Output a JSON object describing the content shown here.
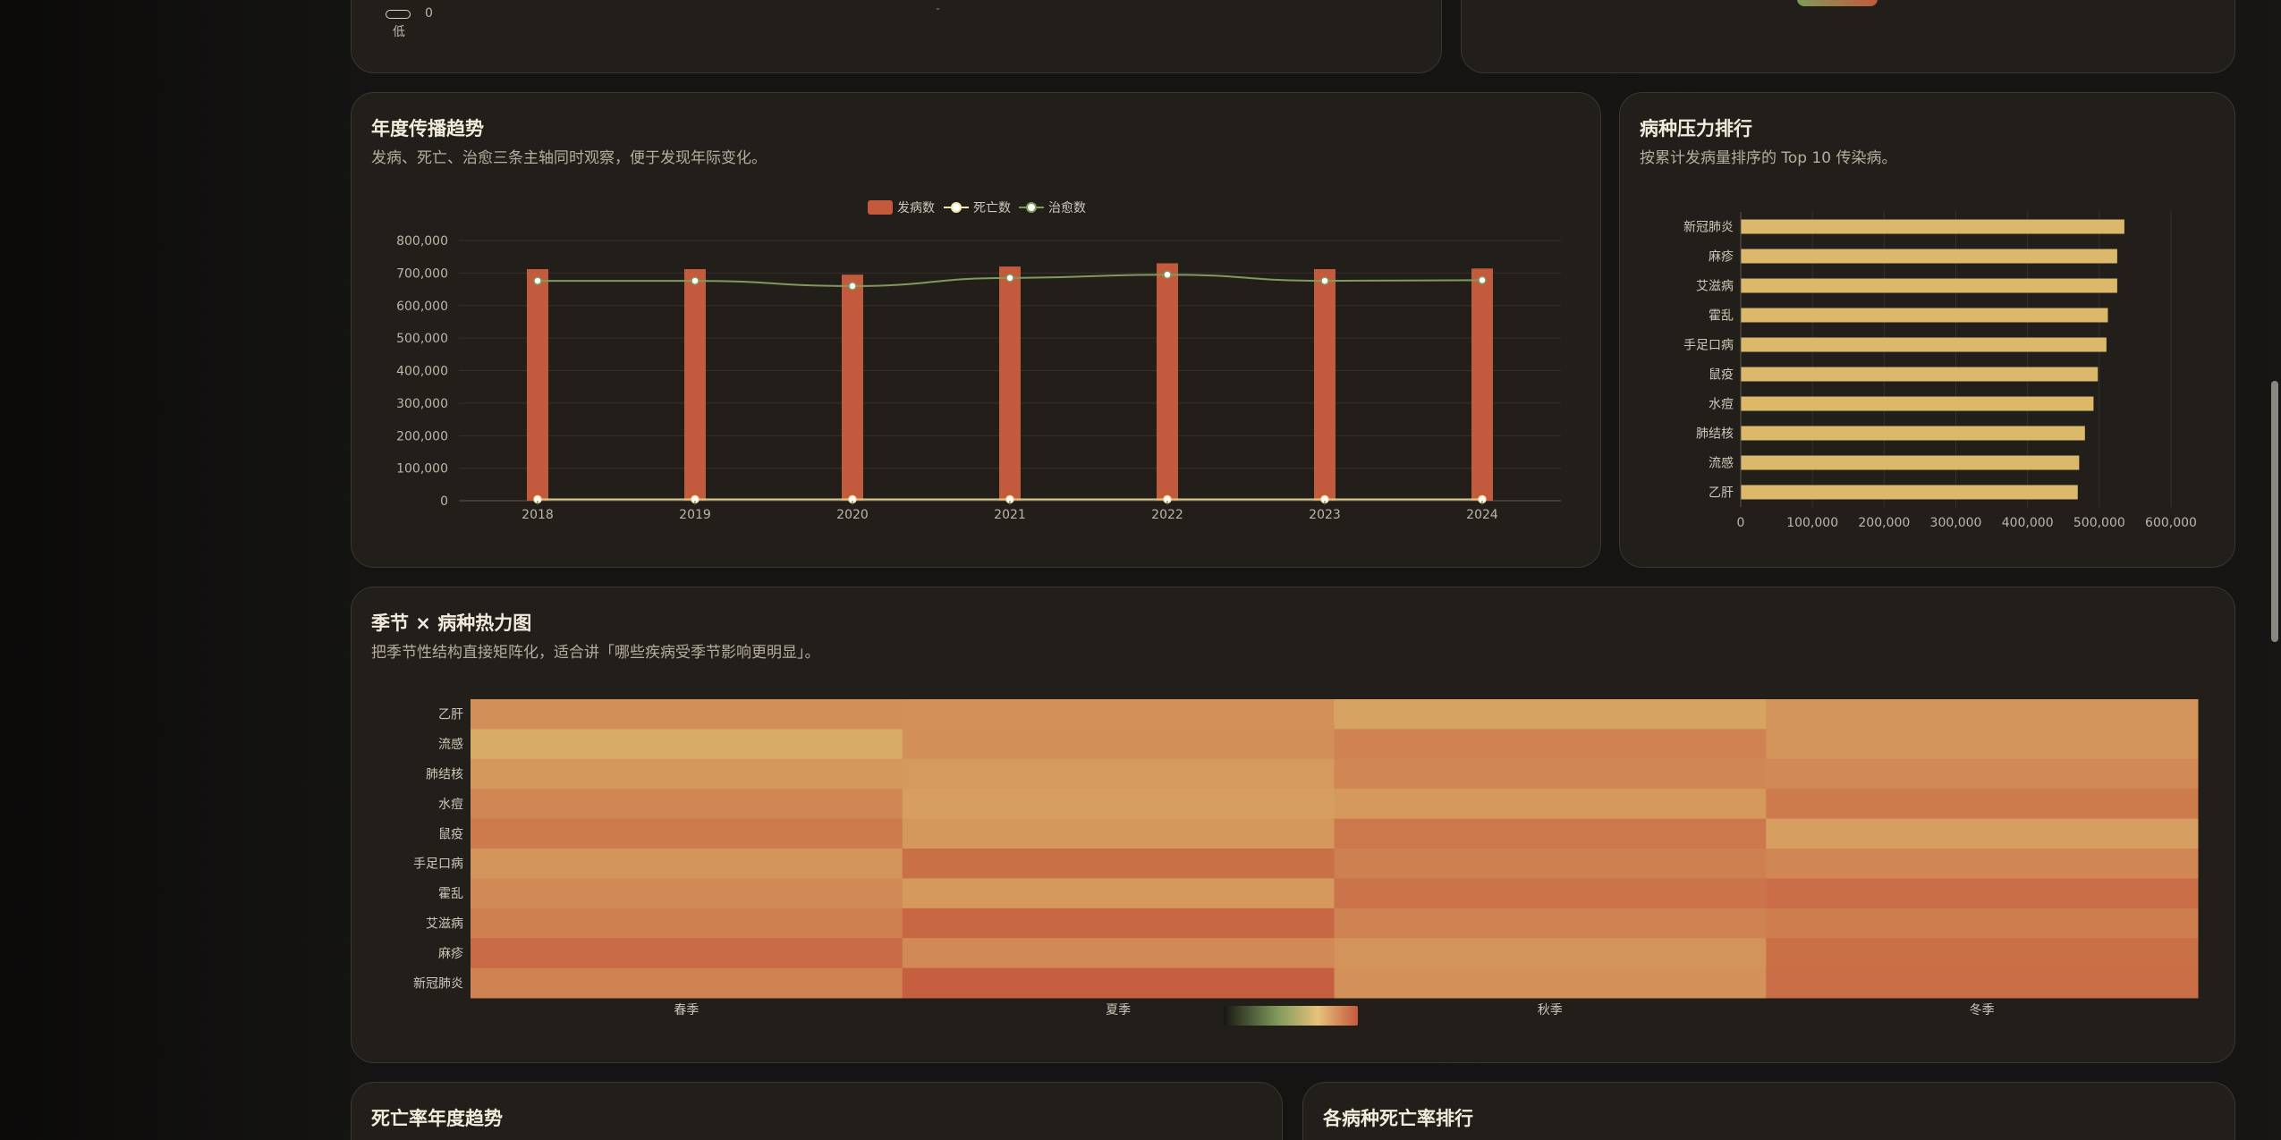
{
  "top_partial": {
    "legend_low_label": "低",
    "legend_low_value": "0"
  },
  "trend": {
    "title": "年度传播趋势",
    "subtitle": "发病、死亡、治愈三条主轴同时观察，便于发现年际变化。",
    "legend": [
      "发病数",
      "死亡数",
      "治愈数"
    ],
    "colors": {
      "cases": "#c45a3c",
      "deaths": "#f2e6a8",
      "cured": "#7f9a5a"
    }
  },
  "ranking": {
    "title": "病种压力排行",
    "subtitle": "按累计发病量排序的 Top 10 传染病。",
    "color": "#dcb96a"
  },
  "heatmap": {
    "title": "季节 × 病种热力图",
    "subtitle": "把季节性结构直接矩阵化，适合讲「哪些疾病受季节影响更明显」。"
  },
  "bottom_left": {
    "title": "死亡率年度趋势"
  },
  "bottom_right": {
    "title": "各病种死亡率排行"
  },
  "chart_data": [
    {
      "type": "bar",
      "chart": "annual-trend",
      "categories": [
        "2018",
        "2019",
        "2020",
        "2021",
        "2022",
        "2023",
        "2024"
      ],
      "series": [
        {
          "name": "发病数",
          "type": "bar",
          "values": [
            712000,
            712000,
            695000,
            720000,
            730000,
            712000,
            714000
          ]
        },
        {
          "name": "死亡数",
          "type": "line",
          "values": [
            4000,
            4000,
            4000,
            4000,
            4000,
            4000,
            4000
          ]
        },
        {
          "name": "治愈数",
          "type": "line",
          "values": [
            676000,
            676000,
            660000,
            685000,
            695000,
            676000,
            678000
          ]
        }
      ],
      "y_ticks": [
        "800,000",
        "700,000",
        "600,000",
        "500,000",
        "400,000",
        "300,000",
        "200,000",
        "100,000",
        "0"
      ],
      "ylim": [
        0,
        800000
      ],
      "legend_position": "top-center",
      "grid": true
    },
    {
      "type": "bar",
      "orientation": "horizontal",
      "chart": "disease-ranking",
      "categories": [
        "新冠肺炎",
        "麻疹",
        "艾滋病",
        "霍乱",
        "手足口病",
        "鼠疫",
        "水痘",
        "肺结核",
        "流感",
        "乙肝"
      ],
      "values": [
        535000,
        525000,
        525000,
        512000,
        510000,
        498000,
        492000,
        480000,
        472000,
        470000
      ],
      "x_ticks": [
        "0",
        "100,000",
        "200,000",
        "300,000",
        "400,000",
        "500,000",
        "600,000"
      ],
      "xlim": [
        0,
        600000
      ],
      "grid": true
    },
    {
      "type": "heatmap",
      "chart": "season-disease",
      "x_categories": [
        "春季",
        "夏季",
        "秋季",
        "冬季"
      ],
      "y_categories": [
        "乙肝",
        "流感",
        "肺结核",
        "水痘",
        "鼠疫",
        "手足口病",
        "霍乱",
        "艾滋病",
        "麻疹",
        "新冠肺炎"
      ],
      "values": [
        [
          0.5,
          0.48,
          0.3,
          0.45
        ],
        [
          0.2,
          0.5,
          0.62,
          0.45
        ],
        [
          0.42,
          0.38,
          0.58,
          0.55
        ],
        [
          0.58,
          0.35,
          0.4,
          0.7
        ],
        [
          0.7,
          0.42,
          0.72,
          0.35
        ],
        [
          0.45,
          0.8,
          0.65,
          0.58
        ],
        [
          0.55,
          0.4,
          0.76,
          0.82
        ],
        [
          0.65,
          0.88,
          0.62,
          0.68
        ],
        [
          0.85,
          0.55,
          0.45,
          0.8
        ],
        [
          0.62,
          0.95,
          0.48,
          0.82
        ]
      ],
      "visual_map_colors": [
        "#1a1714",
        "#7f9a5a",
        "#e6c27a",
        "#c45a3c"
      ]
    }
  ]
}
